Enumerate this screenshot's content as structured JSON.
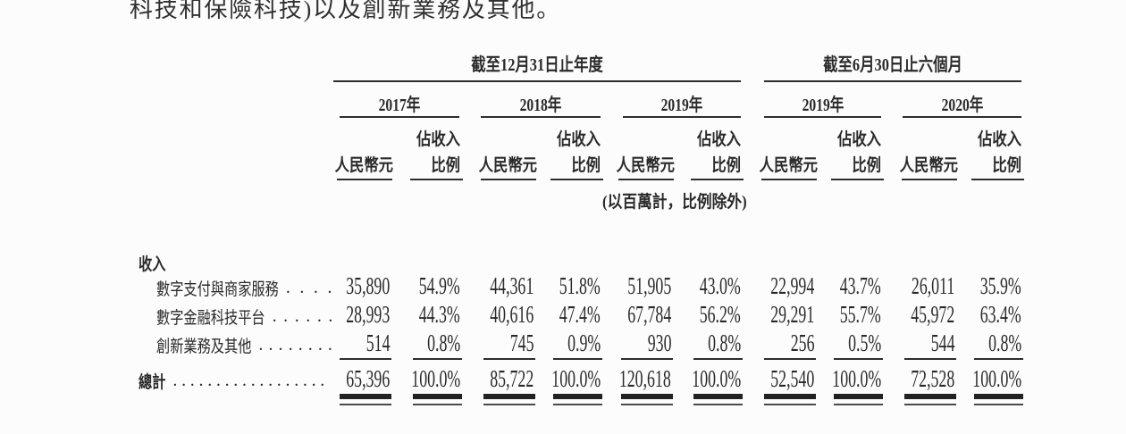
{
  "intro_text": "科技和保險科技)以及創新業務及其他。",
  "table": {
    "period_groups": [
      {
        "label": "截至12月31日止年度"
      },
      {
        "label": "截至6月30日止六個月"
      }
    ],
    "year_headers": [
      "2017年",
      "2018年",
      "2019年",
      "2019年",
      "2020年"
    ],
    "subcol_rmb_label": "人民幣元",
    "subcol_pct_label_line1": "佔收入",
    "subcol_pct_label_line2": "比例",
    "unit_note": "(以百萬計，比例除外)",
    "section_label": "收入",
    "rows": [
      {
        "label": "數字支付與商家服務",
        "values": [
          "35,890",
          "54.9%",
          "44,361",
          "51.8%",
          "51,905",
          "43.0%",
          "22,994",
          "43.7%",
          "26,011",
          "35.9%"
        ]
      },
      {
        "label": "數字金融科技平台",
        "values": [
          "28,993",
          "44.3%",
          "40,616",
          "47.4%",
          "67,784",
          "56.2%",
          "29,291",
          "55.7%",
          "45,972",
          "63.4%"
        ]
      },
      {
        "label": "創新業務及其他",
        "values": [
          "514",
          "0.8%",
          "745",
          "0.9%",
          "930",
          "0.8%",
          "256",
          "0.5%",
          "544",
          "0.8%"
        ]
      }
    ],
    "total_row": {
      "label": "總計",
      "values": [
        "65,396",
        "100.0%",
        "85,722",
        "100.0%",
        "120,618",
        "100.0%",
        "52,540",
        "100.0%",
        "72,528",
        "100.0%"
      ]
    }
  }
}
